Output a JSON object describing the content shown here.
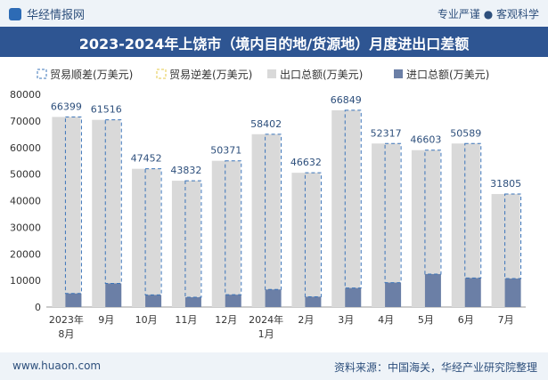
{
  "header": {
    "brand": "华经情报网",
    "tagline": "专业严谨 ● 客观科学"
  },
  "footer": {
    "site": "www.huaon.com",
    "source": "资料来源：中国海关，华经产业研究院整理"
  },
  "colors": {
    "title_bg": "#2e5592",
    "export": "#d9d9d9",
    "import": "#6b7fa6",
    "surplus_border": "#3b74b9",
    "deficit_border": "#e6c84a"
  },
  "chart_data": {
    "type": "bar",
    "title": "2023-2024年上饶市（境内目的地/货源地）月度进出口差额",
    "categories": [
      [
        "2023年",
        "8月"
      ],
      [
        "9月"
      ],
      [
        "10月"
      ],
      [
        "11月"
      ],
      [
        "12月"
      ],
      [
        "2024年",
        "1月"
      ],
      [
        "2月"
      ],
      [
        "3月"
      ],
      [
        "4月"
      ],
      [
        "5月"
      ],
      [
        "6月"
      ],
      [
        "7月"
      ]
    ],
    "ylim": [
      0,
      80000
    ],
    "yticks": [
      0,
      10000,
      20000,
      30000,
      40000,
      50000,
      60000,
      70000,
      80000
    ],
    "legend_position": "top",
    "series": [
      {
        "name": "贸易顺差(万美元)",
        "values": [
          66399,
          61516,
          47452,
          43832,
          50371,
          58402,
          46632,
          66849,
          52317,
          46603,
          50589,
          31805
        ]
      },
      {
        "name": "贸易逆差(万美元)",
        "values": [
          0,
          0,
          0,
          0,
          0,
          0,
          0,
          0,
          0,
          0,
          0,
          0
        ]
      },
      {
        "name": "出口总额(万美元)",
        "values": [
          71500,
          70400,
          52000,
          47500,
          55000,
          65000,
          50500,
          74000,
          61500,
          59000,
          61500,
          42500
        ]
      },
      {
        "name": "进口总额(万美元)",
        "values": [
          5100,
          8884,
          4548,
          3668,
          4629,
          6598,
          3868,
          7151,
          9183,
          12397,
          10911,
          10695
        ]
      }
    ]
  }
}
